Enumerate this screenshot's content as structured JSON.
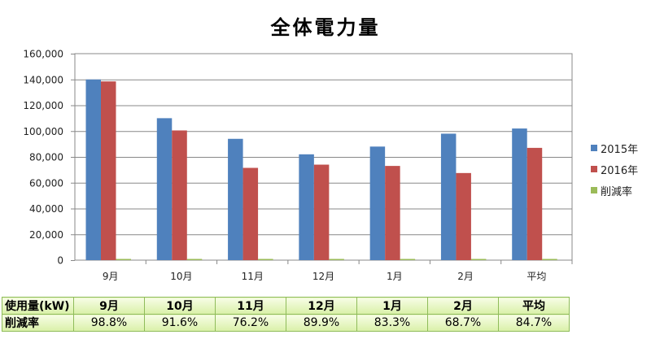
{
  "chart_data": {
    "type": "bar",
    "title": "全体電力量",
    "categories": [
      "9月",
      "10月",
      "11月",
      "12月",
      "1月",
      "2月",
      "平均"
    ],
    "series": [
      {
        "name": "2015年",
        "color": "#4f81bd",
        "values": [
          140000,
          110000,
          94000,
          82000,
          88000,
          98000,
          102000
        ]
      },
      {
        "name": "2016年",
        "color": "#c0504d",
        "values": [
          138500,
          100500,
          71500,
          74000,
          73000,
          67500,
          87000
        ]
      },
      {
        "name": "削減率",
        "color": "#9bbb59",
        "values": [
          98.8,
          91.6,
          76.2,
          89.9,
          83.3,
          68.7,
          84.7
        ]
      }
    ],
    "ylim": [
      0,
      160000
    ],
    "yticks": [
      0,
      20000,
      40000,
      60000,
      80000,
      100000,
      120000,
      140000,
      160000
    ],
    "ytick_labels": [
      "0",
      "20,000",
      "40,000",
      "60,000",
      "80,000",
      "100,000",
      "120,000",
      "140,000",
      "160,000"
    ],
    "grid": true,
    "legend_position": "right"
  },
  "table": {
    "header": [
      "使用量(kW)",
      "9月",
      "10月",
      "11月",
      "12月",
      "1月",
      "2月",
      "平均"
    ],
    "row": [
      "削減率",
      "98.8%",
      "91.6%",
      "76.2%",
      "89.9%",
      "83.3%",
      "68.7%",
      "84.7%"
    ]
  }
}
